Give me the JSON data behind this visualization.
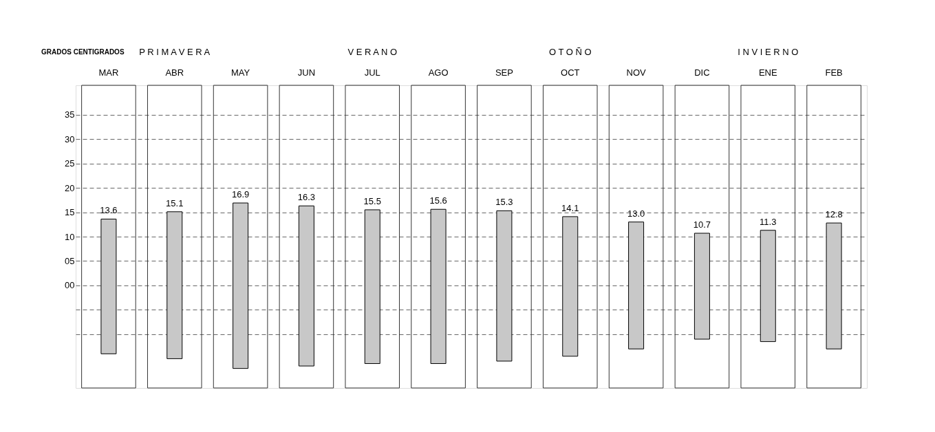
{
  "chart_data": {
    "type": "bar",
    "ylabel": "GRADOS CENTIGRADOS",
    "categories": [
      "MAR",
      "ABR",
      "MAY",
      "JUN",
      "JUL",
      "AGO",
      "SEP",
      "OCT",
      "NOV",
      "DIC",
      "ENE",
      "FEB"
    ],
    "base": [
      -14,
      -15,
      -17,
      -16.5,
      -16,
      -16,
      -15.5,
      -14.5,
      -13,
      -11,
      -11.5,
      -13
    ],
    "values": [
      27.6,
      30.1,
      33.9,
      32.8,
      31.5,
      31.6,
      30.8,
      28.6,
      26.0,
      21.7,
      22.8,
      25.8
    ],
    "value_labels": [
      "13.6",
      "15.1",
      "16.9",
      "16.3",
      "15.5",
      "15.6",
      "15.3",
      "14.1",
      "13.0",
      "10.7",
      "11.3",
      "12.8"
    ],
    "color": "#c8c8c8",
    "ylim": [
      -21,
      41
    ],
    "yticks": [
      35,
      30,
      25,
      20,
      15,
      10,
      {
        "value": 5,
        "label": "05"
      },
      {
        "value": 0,
        "label": "00"
      },
      {
        "value": -5,
        "label": null
      },
      {
        "value": -10,
        "label": null
      }
    ],
    "grid": "y",
    "line_style": "dashed",
    "annotations": [
      "P R I M A V E R A",
      "V E R A N O",
      "O T O Ñ O",
      "I N V I E R N O"
    ]
  }
}
